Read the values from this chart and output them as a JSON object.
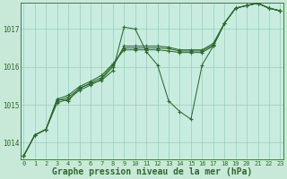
{
  "background_color": "#c8e8d8",
  "plot_bg_color": "#c8ece0",
  "grid_color": "#99ccbb",
  "line_color": "#2d6a2d",
  "xlabel": "Graphe pression niveau de la mer (hPa)",
  "xlabel_fontsize": 7,
  "xticks": [
    0,
    1,
    2,
    3,
    4,
    5,
    6,
    7,
    8,
    9,
    10,
    11,
    12,
    13,
    14,
    15,
    16,
    17,
    18,
    19,
    20,
    21,
    22,
    23
  ],
  "yticks": [
    1014,
    1015,
    1016,
    1017
  ],
  "ylim": [
    1013.55,
    1017.7
  ],
  "xlim": [
    -0.3,
    23.3
  ],
  "series": [
    [
      1013.65,
      1014.2,
      1014.35,
      1015.15,
      1015.1,
      1015.45,
      1015.55,
      1015.65,
      1015.9,
      1017.05,
      1017.0,
      1016.4,
      1016.05,
      1015.1,
      1014.82,
      1014.62,
      1016.05,
      1016.55,
      1017.15,
      1017.55,
      1017.62,
      1017.68,
      1017.55,
      1017.48
    ],
    [
      1013.65,
      1014.2,
      1014.35,
      1015.15,
      1015.25,
      1015.48,
      1015.62,
      1015.78,
      1016.08,
      1016.45,
      1016.45,
      1016.45,
      1016.45,
      1016.42,
      1016.38,
      1016.38,
      1016.38,
      1016.55,
      1017.15,
      1017.55,
      1017.62,
      1017.68,
      1017.55,
      1017.48
    ],
    [
      1013.65,
      1014.2,
      1014.35,
      1015.1,
      1015.2,
      1015.42,
      1015.58,
      1015.72,
      1016.05,
      1016.5,
      1016.5,
      1016.5,
      1016.5,
      1016.48,
      1016.42,
      1016.42,
      1016.42,
      1016.58,
      1017.15,
      1017.55,
      1017.62,
      1017.68,
      1017.55,
      1017.48
    ],
    [
      1013.65,
      1014.2,
      1014.35,
      1015.05,
      1015.15,
      1015.38,
      1015.52,
      1015.68,
      1016.0,
      1016.55,
      1016.55,
      1016.55,
      1016.55,
      1016.52,
      1016.45,
      1016.45,
      1016.45,
      1016.62,
      1017.15,
      1017.55,
      1017.62,
      1017.68,
      1017.55,
      1017.48
    ]
  ]
}
